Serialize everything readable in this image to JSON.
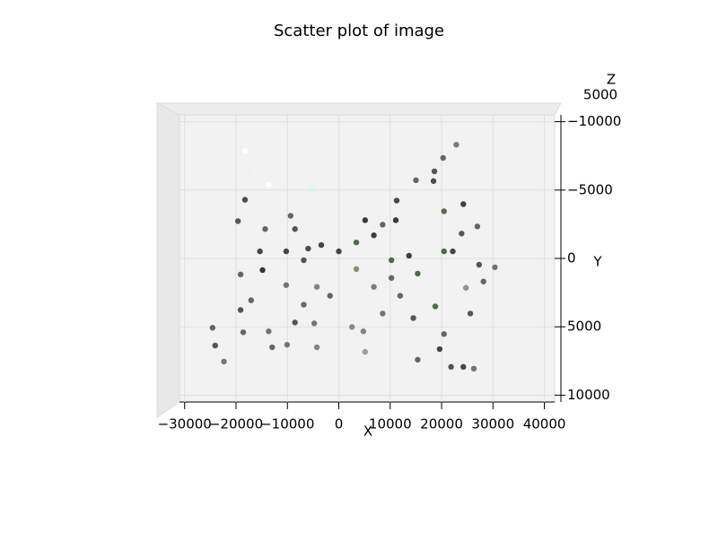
{
  "chart_data": {
    "type": "scatter",
    "title": "Scatter plot of image",
    "xlabel": "X",
    "ylabel": "Y",
    "zlabel": "Z",
    "x": [
      22860,
      20300,
      18600,
      15010,
      18430,
      24230,
      20470,
      11260,
      26960,
      11090,
      -19620,
      -18250,
      -14330,
      -14840,
      -19110,
      30370,
      27300,
      28150,
      24740,
      15350,
      10240,
      -19110,
      -17060,
      -24570,
      -24060,
      -22350,
      -18600,
      -13650,
      -8530,
      -6820,
      -4270,
      -10070,
      -12970,
      2560,
      5120,
      4780,
      8530,
      14500,
      15350,
      19620,
      21840,
      24230,
      26270,
      20470,
      25590,
      18770,
      -4270,
      -4780,
      -1710,
      -15350,
      -10240,
      -5970,
      -3410,
      3410,
      6820,
      8530,
      5120,
      -9380,
      -8530,
      -13650,
      -16210,
      -18250,
      -5120,
      0,
      10240,
      13650,
      20470,
      23890,
      22180,
      -6820,
      -10240,
      3410,
      6820,
      11940
    ],
    "y": [
      -8320,
      -7350,
      -6370,
      -5720,
      -5660,
      -3970,
      -3450,
      -4230,
      -2340,
      -2800,
      -2730,
      -4290,
      -2150,
      850,
      1170,
      650,
      460,
      1690,
      2150,
      1110,
      1430,
      3770,
      3060,
      5070,
      6370,
      7540,
      5400,
      5330,
      4680,
      3380,
      2080,
      6310,
      6500,
      5010,
      6830,
      5330,
      4030,
      4360,
      7410,
      6630,
      7930,
      7930,
      8060,
      5530,
      4030,
      3510,
      6500,
      4750,
      2730,
      -520,
      -520,
      -720,
      -980,
      -1170,
      -1690,
      -2470,
      -2800,
      -3120,
      -2150,
      -5400,
      -6370,
      -7870,
      -5070,
      -520,
      130,
      -200,
      -520,
      -1820,
      -520,
      130,
      1950,
      780,
      2080,
      2730
    ],
    "colors": [
      "#6b6b7a",
      "#555555",
      "#444444",
      "#555555",
      "#3d3d3d",
      "#2a2a2a",
      "#4d5a45",
      "#333333",
      "#555555",
      "#222222",
      "#444444",
      "#3a3a3a",
      "#555555",
      "#222222",
      "#555555",
      "#666666",
      "#444444",
      "#555555",
      "#8a8a80",
      "#3d5a3a",
      "#555555",
      "#444444",
      "#555555",
      "#555555",
      "#444444",
      "#666666",
      "#555555",
      "#666666",
      "#444444",
      "#5a5a5a",
      "#777777",
      "#666666",
      "#555555",
      "#8a7d6b",
      "#a09080",
      "#777777",
      "#666666",
      "#444444",
      "#555555",
      "#333333",
      "#444444",
      "#333333",
      "#666666",
      "#555555",
      "#444444",
      "#3d5a3a",
      "#777777",
      "#666666",
      "#555555",
      "#333333",
      "#333333",
      "#3a3a3a",
      "#333333",
      "#3d5a3a",
      "#2a2a2a",
      "#4d5a45",
      "#222222",
      "#555555",
      "#444444",
      "#ffffff",
      "#f4f4f4",
      "#ffffff",
      "#d8f4f4",
      "#333333",
      "#3d5a3a",
      "#2a2a2a",
      "#3d5a3a",
      "#444444",
      "#333333",
      "#444444",
      "#666666",
      "#8a7d6b",
      "#7a6a60",
      "#555555"
    ],
    "xlim": [
      -31000,
      42000
    ],
    "ylim": [
      -10500,
      10500
    ],
    "yaxis_inverted": true,
    "xticks": [
      {
        "value": -30000,
        "label": "−30000"
      },
      {
        "value": -20000,
        "label": "−20000"
      },
      {
        "value": -10000,
        "label": "−10000"
      },
      0,
      10000,
      20000,
      30000,
      40000
    ],
    "yticks": [
      {
        "value": -10000,
        "label": "−10000"
      },
      {
        "value": -5000,
        "label": "−5000"
      },
      0,
      5000,
      10000
    ],
    "zticks": [
      5000
    ],
    "grid": true
  }
}
